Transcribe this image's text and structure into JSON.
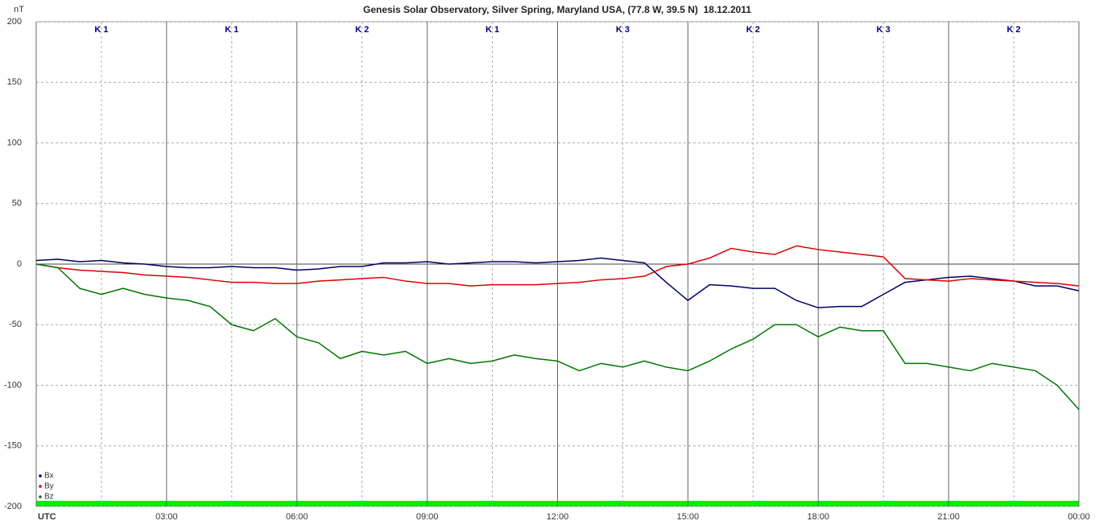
{
  "chart_data": {
    "type": "line",
    "title": "Genesis Solar Observatory, Silver Spring, Maryland USA, (77.8 W, 39.5 N)  18.12.2011",
    "y_label": "nT",
    "k_index": [
      "K 1",
      "K 1",
      "K 2",
      "K 1",
      "K 3",
      "K 2",
      "K 3",
      "K 2"
    ],
    "x": [
      0,
      0.5,
      1,
      1.5,
      2,
      2.5,
      3,
      3.5,
      4,
      4.5,
      5,
      5.5,
      6,
      6.5,
      7,
      7.5,
      8,
      8.5,
      9,
      9.5,
      10,
      10.5,
      11,
      11.5,
      12,
      12.5,
      13,
      13.5,
      14,
      14.5,
      15,
      15.5,
      16,
      16.5,
      17,
      17.5,
      18,
      18.5,
      19,
      19.5,
      20,
      20.5,
      21,
      21.5,
      22,
      22.5,
      23,
      23.5,
      24
    ],
    "series": [
      {
        "name": "Bx",
        "color": "#000066",
        "values": [
          3,
          4,
          2,
          3,
          1,
          0,
          -2,
          -3,
          -3,
          -2,
          -3,
          -3,
          -5,
          -4,
          -2,
          -2,
          1,
          1,
          2,
          0,
          1,
          2,
          2,
          1,
          2,
          3,
          5,
          3,
          1,
          -15,
          -30,
          -17,
          -18,
          -20,
          -20,
          -30,
          -36,
          -35,
          -35,
          -25,
          -15,
          -13,
          -11,
          -10,
          -12,
          -14,
          -18,
          -18,
          -22
        ]
      },
      {
        "name": "By",
        "color": "#dd0000",
        "values": [
          0,
          -3,
          -5,
          -6,
          -7,
          -9,
          -10,
          -11,
          -13,
          -15,
          -15,
          -16,
          -16,
          -14,
          -13,
          -12,
          -11,
          -14,
          -16,
          -16,
          -18,
          -17,
          -17,
          -17,
          -16,
          -15,
          -13,
          -12,
          -10,
          -2,
          0,
          5,
          13,
          10,
          8,
          15,
          12,
          10,
          8,
          6,
          -12,
          -13,
          -14,
          -12,
          -13,
          -14,
          -15,
          -16,
          -18
        ]
      },
      {
        "name": "Bz",
        "color": "#007700",
        "values": [
          0,
          -3,
          -20,
          -25,
          -20,
          -25,
          -28,
          -30,
          -35,
          -50,
          -55,
          -45,
          -60,
          -65,
          -78,
          -72,
          -75,
          -72,
          -82,
          -78,
          -82,
          -80,
          -75,
          -78,
          -80,
          -88,
          -82,
          -85,
          -80,
          -85,
          -88,
          -80,
          -70,
          -62,
          -50,
          -50,
          -60,
          -52,
          -55,
          -55,
          -82,
          -82,
          -85,
          -88,
          -82,
          -85,
          -88,
          -100,
          -120
        ]
      }
    ],
    "xlim": [
      0,
      24
    ],
    "xticks": [
      {
        "value": 0,
        "label": "UTC"
      },
      {
        "value": 3,
        "label": "03:00"
      },
      {
        "value": 6,
        "label": "06:00"
      },
      {
        "value": 9,
        "label": "09:00"
      },
      {
        "value": 12,
        "label": "12:00"
      },
      {
        "value": 15,
        "label": "15:00"
      },
      {
        "value": 18,
        "label": "18:00"
      },
      {
        "value": 21,
        "label": "21:00"
      },
      {
        "value": 24,
        "label": "00:00"
      }
    ],
    "ylim": [
      -200,
      200
    ],
    "yticks": [
      -200,
      -150,
      -100,
      -50,
      0,
      50,
      100,
      150,
      200
    ],
    "grid": true,
    "legend": "lower-left"
  }
}
